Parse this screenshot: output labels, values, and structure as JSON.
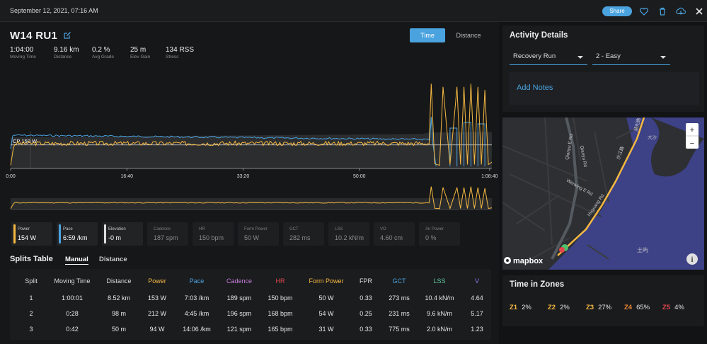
{
  "topbar": {
    "date": "September 12, 2021, 07:16 AM",
    "share": "Share"
  },
  "activity": {
    "title": "W14 RU1"
  },
  "toggle": {
    "time": "Time",
    "distance": "Distance"
  },
  "stats": [
    {
      "value": "1:04:00",
      "label": "Moving Time"
    },
    {
      "value": "9.16 km",
      "label": "Distance"
    },
    {
      "value": "0.2 %",
      "label": "Avg Grade"
    },
    {
      "value": "25 m",
      "label": "Elev Gain"
    },
    {
      "value": "134 RSS",
      "label": "Stress"
    }
  ],
  "chart_data": {
    "type": "line",
    "annotation": "CP 150 W",
    "x_ticks": [
      "0:00",
      "16:40",
      "33:20",
      "50:00",
      "1:08:40"
    ],
    "x_ticks_minutes": [
      0,
      16.67,
      33.33,
      50,
      68.67
    ],
    "x_max_minutes": 69,
    "power_range": [
      0,
      600
    ],
    "cp_watts": 150,
    "series": [
      {
        "name": "Power",
        "color": "#f5b942",
        "values_minutes": [
          0,
          1,
          2,
          10,
          20,
          30,
          40,
          50,
          60,
          60.3,
          60.8,
          61.5,
          62,
          63,
          64,
          64.5,
          65,
          65.5,
          66,
          66.5,
          67,
          67.5,
          68,
          68.5,
          69
        ],
        "values": [
          20,
          153,
          153,
          153,
          153,
          153,
          153,
          153,
          155,
          540,
          30,
          20,
          520,
          25,
          520,
          25,
          520,
          25,
          540,
          25,
          520,
          25,
          500,
          25,
          40
        ]
      },
      {
        "name": "Pace",
        "color": "#4aa3df"
      },
      {
        "name": "Elevation",
        "color": "#cccccc"
      }
    ]
  },
  "metric_cards": [
    {
      "label": "Power",
      "value": "154 W",
      "color": "#f5b942",
      "active": true
    },
    {
      "label": "Pace",
      "value": "6:59 /km",
      "color": "#4aa3df",
      "active": true
    },
    {
      "label": "Elevation",
      "value": "-0 m",
      "color": "#dddddd",
      "active": true
    },
    {
      "label": "Cadence",
      "value": "187 spm",
      "active": false
    },
    {
      "label": "HR",
      "value": "150 bpm",
      "active": false
    },
    {
      "label": "Form Power",
      "value": "50 W",
      "active": false
    },
    {
      "label": "GCT",
      "value": "282 ms",
      "active": false
    },
    {
      "label": "LSS",
      "value": "10.2 kN/m",
      "active": false
    },
    {
      "label": "VO",
      "value": "4.60 cm",
      "active": false
    },
    {
      "label": "Air Power",
      "value": "0 %",
      "active": false
    }
  ],
  "splits": {
    "title": "Splits Table",
    "tabs": [
      "Manual",
      "Distance"
    ],
    "columns": [
      {
        "name": "Split",
        "color": "#dddddd"
      },
      {
        "name": "Moving Time",
        "color": "#dddddd"
      },
      {
        "name": "Distance",
        "color": "#dddddd"
      },
      {
        "name": "Power",
        "color": "#f5b942"
      },
      {
        "name": "Pace",
        "color": "#4aa3df"
      },
      {
        "name": "Cadence",
        "color": "#c77ddb"
      },
      {
        "name": "HR",
        "color": "#e0474c"
      },
      {
        "name": "Form Power",
        "color": "#f5b942"
      },
      {
        "name": "FPR",
        "color": "#dddddd"
      },
      {
        "name": "GCT",
        "color": "#4aa3df"
      },
      {
        "name": "LSS",
        "color": "#5fc79a"
      },
      {
        "name": "V",
        "color": "#8a7df0"
      }
    ],
    "rows": [
      [
        "1",
        "1:00:01",
        "8.52 km",
        "153 W",
        "7:03 /km",
        "189 spm",
        "150 bpm",
        "50 W",
        "0.33",
        "273 ms",
        "10.4 kN/m",
        "4.64"
      ],
      [
        "2",
        "0:28",
        "98 m",
        "212 W",
        "4:45 /km",
        "196 spm",
        "168 bpm",
        "54 W",
        "0.25",
        "231 ms",
        "9.6 kN/m",
        "5.17"
      ],
      [
        "3",
        "0:42",
        "50 m",
        "94 W",
        "14:06 /km",
        "121 spm",
        "165 bpm",
        "31 W",
        "0.33",
        "775 ms",
        "2.0 kN/m",
        "1.23"
      ]
    ]
  },
  "details": {
    "title": "Activity Details",
    "type": "Recovery Run",
    "intensity": "2 - Easy",
    "add_notes": "Add Notes"
  },
  "map": {
    "labels": [
      "Qianyu Rd",
      "Qianyu E Rd",
      "Wenxing E Rd",
      "Huguang Rd",
      "湖光路",
      "沙江路",
      "土屿",
      "大沙"
    ],
    "brand": "mapbox",
    "zoom_in": "+",
    "zoom_out": "−",
    "info": "i"
  },
  "zones": {
    "title": "Time in Zones",
    "items": [
      {
        "label": "Z1",
        "value": "2%",
        "color": "#f5b942"
      },
      {
        "label": "Z2",
        "value": "2%",
        "color": "#f5b942"
      },
      {
        "label": "Z3",
        "value": "27%",
        "color": "#f5b942"
      },
      {
        "label": "Z4",
        "value": "65%",
        "color": "#f08a35"
      },
      {
        "label": "Z5",
        "value": "4%",
        "color": "#e0474c"
      }
    ]
  }
}
